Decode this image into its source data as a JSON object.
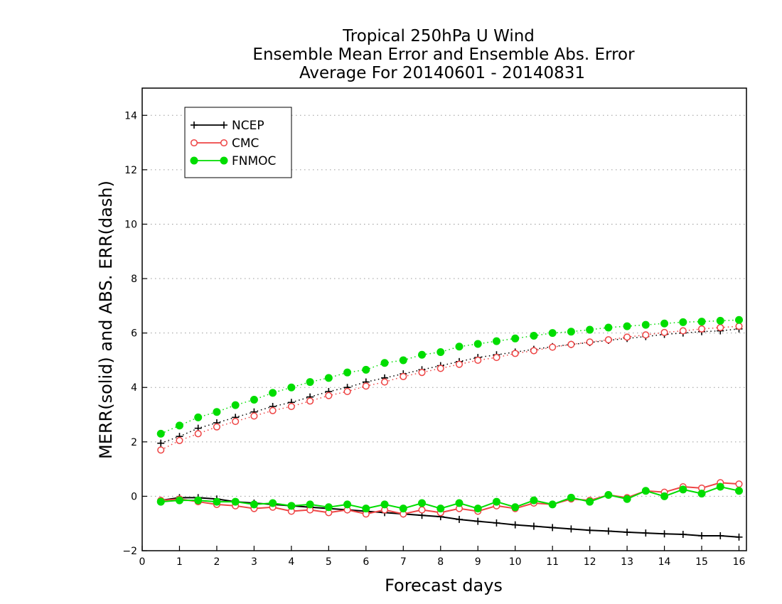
{
  "chart_data": {
    "type": "line",
    "title": [
      "Tropical 250hPa U Wind",
      "Ensemble Mean Error and Ensemble Abs. Error",
      "Average For 20140601 - 20140831"
    ],
    "xlabel": "Forecast days",
    "ylabel": "MERR(solid) and ABS. ERR(dash)",
    "xlim": [
      0,
      16.2
    ],
    "ylim": [
      -2,
      15
    ],
    "xticks": [
      0,
      1,
      2,
      3,
      4,
      5,
      6,
      7,
      8,
      9,
      10,
      11,
      12,
      13,
      14,
      15,
      16
    ],
    "yticks": [
      -2,
      0,
      2,
      4,
      6,
      8,
      10,
      12,
      14
    ],
    "grid": "horizontal dotted",
    "legend_position": "top-left",
    "x": [
      0.5,
      1,
      1.5,
      2,
      2.5,
      3,
      3.5,
      4,
      4.5,
      5,
      5.5,
      6,
      6.5,
      7,
      7.5,
      8,
      8.5,
      9,
      9.5,
      10,
      10.5,
      11,
      11.5,
      12,
      12.5,
      13,
      13.5,
      14,
      14.5,
      15,
      15.5,
      16
    ],
    "series": [
      {
        "name": "NCEP",
        "color": "#000000",
        "marker": "plus",
        "mean_error": [
          -0.15,
          -0.05,
          -0.05,
          -0.1,
          -0.2,
          -0.25,
          -0.3,
          -0.35,
          -0.4,
          -0.45,
          -0.5,
          -0.55,
          -0.6,
          -0.65,
          -0.7,
          -0.75,
          -0.85,
          -0.92,
          -0.98,
          -1.05,
          -1.1,
          -1.15,
          -1.2,
          -1.25,
          -1.28,
          -1.32,
          -1.35,
          -1.38,
          -1.4,
          -1.45,
          -1.45,
          -1.5
        ],
        "abs_error": [
          1.95,
          2.2,
          2.5,
          2.7,
          2.9,
          3.1,
          3.3,
          3.45,
          3.65,
          3.85,
          4.0,
          4.2,
          4.35,
          4.5,
          4.65,
          4.8,
          4.95,
          5.1,
          5.2,
          5.3,
          5.4,
          5.5,
          5.58,
          5.65,
          5.73,
          5.8,
          5.87,
          5.95,
          6.0,
          6.05,
          6.08,
          6.15
        ]
      },
      {
        "name": "CMC",
        "color": "#ee4444",
        "marker": "open-circle",
        "mean_error": [
          -0.15,
          -0.1,
          -0.2,
          -0.3,
          -0.35,
          -0.45,
          -0.4,
          -0.55,
          -0.5,
          -0.6,
          -0.5,
          -0.65,
          -0.5,
          -0.65,
          -0.5,
          -0.6,
          -0.45,
          -0.55,
          -0.35,
          -0.45,
          -0.25,
          -0.3,
          -0.1,
          -0.15,
          0.05,
          -0.05,
          0.2,
          0.15,
          0.35,
          0.3,
          0.5,
          0.45
        ],
        "abs_error": [
          1.7,
          2.05,
          2.3,
          2.55,
          2.75,
          2.95,
          3.15,
          3.3,
          3.5,
          3.7,
          3.85,
          4.05,
          4.2,
          4.4,
          4.55,
          4.7,
          4.85,
          5.0,
          5.1,
          5.25,
          5.35,
          5.48,
          5.58,
          5.67,
          5.75,
          5.85,
          5.93,
          6.02,
          6.08,
          6.15,
          6.2,
          6.25
        ]
      },
      {
        "name": "FNMOC",
        "color": "#00dd00",
        "marker": "filled-circle",
        "mean_error": [
          -0.2,
          -0.15,
          -0.15,
          -0.2,
          -0.2,
          -0.3,
          -0.25,
          -0.35,
          -0.3,
          -0.4,
          -0.3,
          -0.45,
          -0.3,
          -0.45,
          -0.25,
          -0.45,
          -0.25,
          -0.45,
          -0.2,
          -0.4,
          -0.15,
          -0.3,
          -0.05,
          -0.2,
          0.05,
          -0.1,
          0.2,
          0.0,
          0.25,
          0.1,
          0.35,
          0.2
        ],
        "abs_error": [
          2.3,
          2.6,
          2.9,
          3.1,
          3.35,
          3.55,
          3.8,
          4.0,
          4.2,
          4.35,
          4.55,
          4.65,
          4.9,
          5.0,
          5.2,
          5.3,
          5.5,
          5.6,
          5.7,
          5.8,
          5.9,
          6.0,
          6.05,
          6.12,
          6.2,
          6.25,
          6.3,
          6.35,
          6.4,
          6.42,
          6.45,
          6.48
        ]
      }
    ]
  }
}
